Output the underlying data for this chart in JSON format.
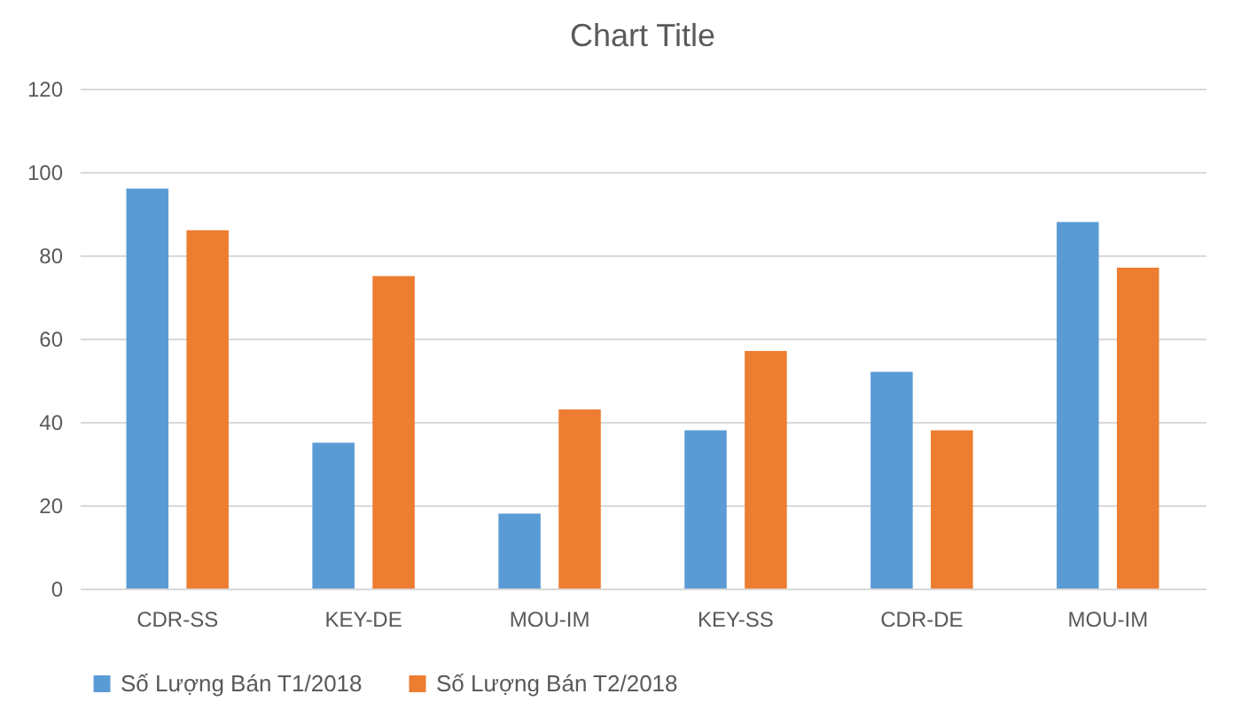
{
  "chart_data": {
    "type": "bar",
    "title": "Chart Title",
    "categories": [
      "CDR-SS",
      "KEY-DE",
      "MOU-IM",
      "KEY-SS",
      "CDR-DE",
      "MOU-IM"
    ],
    "series": [
      {
        "name": "Số Lượng Bán T1/2018",
        "color": "#5b9bd5",
        "values": [
          96,
          35,
          18,
          38,
          52,
          88
        ]
      },
      {
        "name": "Số Lượng Bán T2/2018",
        "color": "#ed7d31",
        "values": [
          86,
          75,
          43,
          57,
          38,
          77
        ]
      }
    ],
    "ylim": [
      0,
      120
    ],
    "yticks": [
      0,
      20,
      40,
      60,
      80,
      100,
      120
    ],
    "grid": "y",
    "legend": "bottom"
  }
}
